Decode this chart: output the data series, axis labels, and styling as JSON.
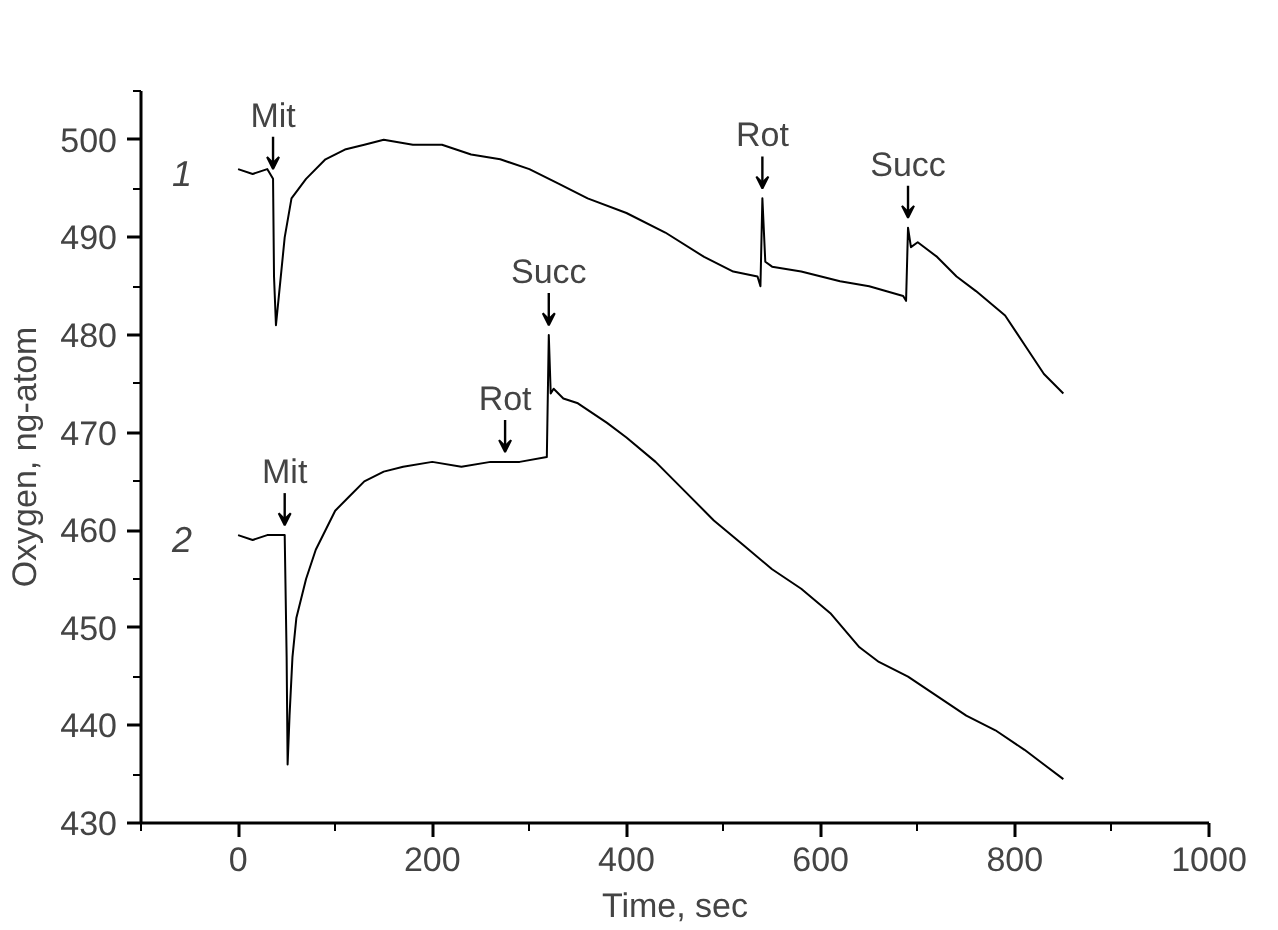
{
  "chart_data": {
    "type": "line",
    "xlabel": "Time, sec",
    "ylabel": "Oxygen, ng-atom",
    "xlim": [
      -100,
      1000
    ],
    "ylim": [
      430,
      505
    ],
    "xticks": [
      0,
      200,
      400,
      600,
      800,
      1000
    ],
    "yticks": [
      430,
      440,
      450,
      460,
      470,
      480,
      490,
      500
    ],
    "grid": false,
    "marker": "none",
    "line_style": "solid",
    "series": [
      {
        "name": "1",
        "color": "#000000",
        "x": [
          0,
          15,
          30,
          36,
          37,
          39,
          42,
          48,
          55,
          70,
          90,
          110,
          130,
          150,
          180,
          210,
          240,
          270,
          300,
          330,
          360,
          400,
          440,
          480,
          510,
          535,
          538,
          540,
          543,
          550,
          580,
          620,
          650,
          685,
          688,
          690,
          693,
          700,
          720,
          740,
          760,
          790,
          810,
          830,
          850
        ],
        "values": [
          497,
          496.5,
          497,
          496,
          486,
          481,
          484,
          490,
          494,
          496,
          498,
          499,
          499.5,
          500,
          499.5,
          499.5,
          498.5,
          498,
          497,
          495.5,
          494,
          492.5,
          490.5,
          488,
          486.5,
          486,
          485,
          494,
          487.5,
          487,
          486.5,
          485.5,
          485,
          484,
          483.5,
          491,
          489,
          489.5,
          488,
          486,
          484.5,
          482,
          479,
          476,
          474
        ]
      },
      {
        "name": "2",
        "color": "#000000",
        "x": [
          0,
          15,
          30,
          48,
          50,
          51,
          53,
          56,
          60,
          70,
          80,
          90,
          100,
          115,
          130,
          150,
          170,
          200,
          230,
          260,
          275,
          290,
          318,
          320,
          322,
          325,
          335,
          350,
          380,
          400,
          430,
          460,
          490,
          520,
          550,
          580,
          610,
          640,
          660,
          690,
          720,
          750,
          780,
          810,
          830,
          850
        ],
        "values": [
          459.5,
          459,
          459.5,
          459.5,
          447,
          436,
          441,
          447,
          451,
          455,
          458,
          460,
          462,
          463.5,
          465,
          466,
          466.5,
          467,
          466.5,
          467,
          467,
          467,
          467.5,
          480,
          474,
          474.5,
          473.5,
          473,
          471,
          469.5,
          467,
          464,
          461,
          458.5,
          456,
          454,
          451.5,
          448,
          446.5,
          445,
          443,
          441,
          439.5,
          437.5,
          436,
          434.5
        ]
      }
    ],
    "annotations": [
      {
        "text": "Mit",
        "x": 36,
        "y": 496
      },
      {
        "text": "Rot",
        "x": 540,
        "y": 494
      },
      {
        "text": "Succ",
        "x": 690,
        "y": 491
      },
      {
        "text": "Mit",
        "x": 48,
        "y": 459.5
      },
      {
        "text": "Rot",
        "x": 275,
        "y": 467
      },
      {
        "text": "Succ",
        "x": 320,
        "y": 480
      }
    ]
  }
}
